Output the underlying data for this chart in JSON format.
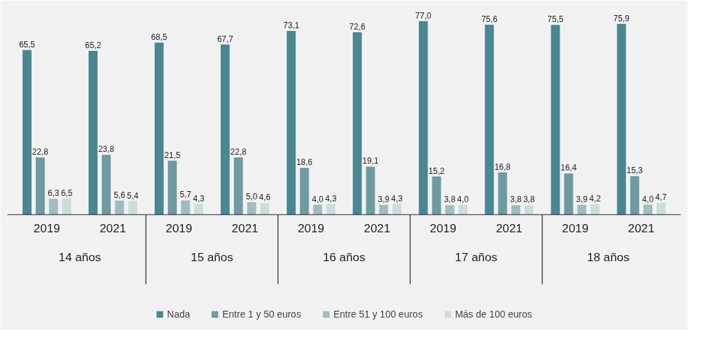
{
  "chart_data": {
    "type": "bar",
    "categories": [
      "2019",
      "2021",
      "2019",
      "2021",
      "2019",
      "2021",
      "2019",
      "2021",
      "2019",
      "2021"
    ],
    "annotations": [
      "14 años",
      "15 años",
      "16 años",
      "17 años",
      "18 años"
    ],
    "legend": "bottom",
    "series": [
      {
        "name": "Nada",
        "color": "#4a8790",
        "values": [
          65.5,
          65.2,
          68.5,
          67.7,
          73.1,
          72.6,
          77.0,
          75.6,
          75.5,
          75.9
        ],
        "value_labels": [
          "65,5",
          "65,2",
          "68,5",
          "67,7",
          "73,1",
          "72,6",
          "77,0",
          "75,6",
          "75,5",
          "75,9"
        ]
      },
      {
        "name": "Entre 1 y 50 euros",
        "color": "#6f9aa1",
        "values": [
          22.8,
          23.8,
          21.5,
          22.8,
          18.6,
          19.1,
          15.2,
          16.8,
          16.4,
          15.3
        ],
        "value_labels": [
          "22,8",
          "23,8",
          "21,5",
          "22,8",
          "18,6",
          "19,1",
          "15,2",
          "16,8",
          "16,4",
          "15,3"
        ]
      },
      {
        "name": "Entre 51 y 100 euros",
        "color": "#a0bcc0",
        "values": [
          6.3,
          5.6,
          5.7,
          5.0,
          4.0,
          3.9,
          3.8,
          3.8,
          3.9,
          4.0
        ],
        "value_labels": [
          "6,3",
          "5,6",
          "5,7",
          "5,0",
          "4,0",
          "3,9",
          "3,8",
          "3,8",
          "3,9",
          "4,0"
        ]
      },
      {
        "name": "Más de 100 euros",
        "color": "#cddcde",
        "values": [
          6.5,
          5.4,
          4.3,
          4.6,
          4.3,
          4.3,
          4.0,
          3.8,
          4.2,
          4.7
        ],
        "value_labels": [
          "6,5",
          "5,4",
          "4,3",
          "4,6",
          "4,3",
          "4,3",
          "4,0",
          "3,8",
          "4,2",
          "4,7"
        ]
      }
    ]
  }
}
